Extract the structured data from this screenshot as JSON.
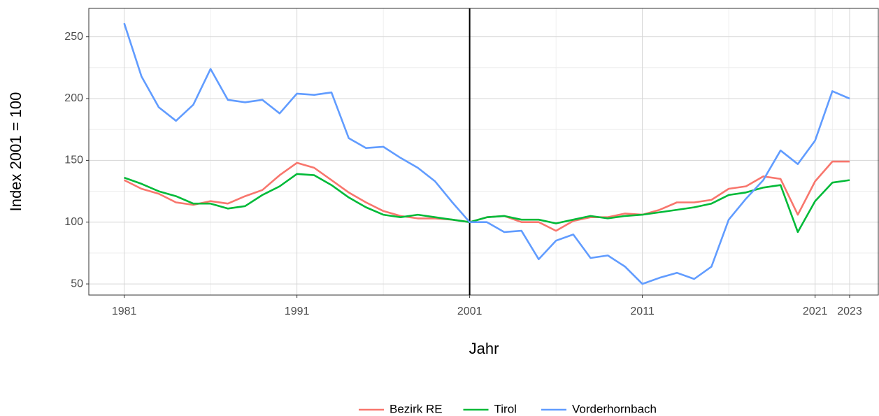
{
  "chart_data": {
    "type": "line",
    "x_label": "Jahr",
    "y_label": "Index 2001 = 100",
    "x": [
      1981,
      1982,
      1983,
      1984,
      1985,
      1986,
      1987,
      1988,
      1989,
      1990,
      1991,
      1992,
      1993,
      1994,
      1995,
      1996,
      1997,
      1998,
      1999,
      2000,
      2001,
      2002,
      2003,
      2004,
      2005,
      2006,
      2007,
      2008,
      2009,
      2010,
      2011,
      2012,
      2013,
      2014,
      2015,
      2016,
      2017,
      2018,
      2019,
      2020,
      2021,
      2022,
      2023
    ],
    "series": [
      {
        "name": "Bezirk RE",
        "color": "#F8766D",
        "values": [
          134,
          127,
          123,
          116,
          114,
          117,
          115,
          121,
          126,
          138,
          148,
          144,
          134,
          124,
          116,
          109,
          105,
          103,
          103,
          102,
          100,
          104,
          105,
          100,
          100,
          93,
          101,
          104,
          104,
          107,
          106,
          110,
          116,
          116,
          118,
          127,
          129,
          137,
          135,
          106,
          133,
          149,
          149
        ]
      },
      {
        "name": "Tirol",
        "color": "#00BA38",
        "values": [
          136,
          131,
          125,
          121,
          115,
          115,
          111,
          113,
          122,
          129,
          139,
          138,
          130,
          120,
          112,
          106,
          104,
          106,
          104,
          102,
          100,
          104,
          105,
          102,
          102,
          99,
          102,
          105,
          103,
          105,
          106,
          108,
          110,
          112,
          115,
          122,
          124,
          128,
          130,
          92,
          117,
          132,
          134
        ]
      },
      {
        "name": "Vorderhornbach",
        "color": "#619CFF",
        "values": [
          261,
          218,
          193,
          182,
          195,
          224,
          199,
          197,
          199,
          188,
          204,
          203,
          205,
          168,
          160,
          161,
          152,
          144,
          133,
          116,
          100,
          100,
          92,
          93,
          70,
          85,
          90,
          71,
          73,
          64,
          50,
          55,
          59,
          54,
          64,
          102,
          119,
          134,
          158,
          147,
          166,
          206,
          200
        ]
      }
    ],
    "xlim": [
      1978.95,
      2024.7
    ],
    "ylim": [
      41,
      273
    ],
    "xticks": [
      1981,
      1991,
      2001,
      2011,
      2021,
      2023
    ],
    "yticks": [
      50,
      100,
      150,
      200,
      250
    ],
    "xminor": [
      1986,
      1996,
      2006,
      2016,
      2022
    ],
    "yminor": [
      75,
      125,
      175,
      225
    ],
    "vline": 2001,
    "grid": true,
    "legend": "bottom"
  }
}
